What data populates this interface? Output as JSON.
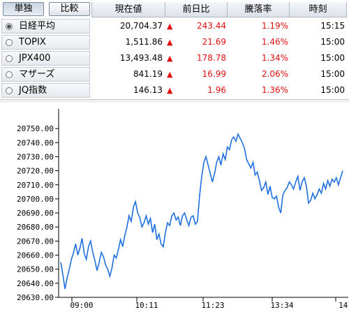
{
  "header": {
    "toggle_individual": "単独",
    "toggle_compare": "比較",
    "col_price": "現在値",
    "col_change": "前日比",
    "col_pct": "騰落率",
    "col_time": "時刻"
  },
  "rows": [
    {
      "name": "日経平均",
      "price": "20,704.37",
      "arrow": "▲",
      "change": "243.44",
      "pct": "1.19%",
      "time": "15:15",
      "selected": true
    },
    {
      "name": "TOPIX",
      "price": "1,511.86",
      "arrow": "▲",
      "change": "21.69",
      "pct": "1.46%",
      "time": "15:00",
      "selected": false
    },
    {
      "name": "JPX400",
      "price": "13,493.48",
      "arrow": "▲",
      "change": "178.78",
      "pct": "1.34%",
      "time": "15:00",
      "selected": false
    },
    {
      "name": "マザーズ",
      "price": "841.19",
      "arrow": "▲",
      "change": "16.99",
      "pct": "2.06%",
      "time": "15:00",
      "selected": false
    },
    {
      "name": "JQ指数",
      "price": "146.13",
      "arrow": "▲",
      "change": "1.96",
      "pct": "1.36%",
      "time": "15:00",
      "selected": false
    }
  ],
  "colors": {
    "up": "#e01010",
    "line": "#1f6fe0"
  },
  "chart_data": {
    "type": "line",
    "title": "",
    "xlabel": "",
    "ylabel": "",
    "ylim": [
      20630,
      20760
    ],
    "y_ticks": [
      "20630.00",
      "20640.00",
      "20650.00",
      "20660.00",
      "20670.00",
      "20680.00",
      "20690.00",
      "20700.00",
      "20710.00",
      "20720.00",
      "20730.00",
      "20740.00",
      "20750.00"
    ],
    "x_ticks": [
      "09:00",
      "10:11",
      "11:23",
      "13:34",
      "14:"
    ],
    "grid": false,
    "series": [
      {
        "values": [
          20655,
          20646,
          20636,
          20644,
          20650,
          20657,
          20662,
          20668,
          20660,
          20665,
          20672,
          20661,
          20657,
          20666,
          20670,
          20662,
          20656,
          20649,
          20655,
          20662,
          20659,
          20653,
          20650,
          20645,
          20651,
          20660,
          20658,
          20664,
          20671,
          20666,
          20674,
          20680,
          20688,
          20684,
          20694,
          20698,
          20690,
          20687,
          20680,
          20683,
          20688,
          20682,
          20686,
          20676,
          20682,
          20671,
          20675,
          20668,
          20666,
          20676,
          20683,
          20681,
          20688,
          20690,
          20685,
          20687,
          20681,
          20688,
          20690,
          20685,
          20681,
          20687,
          20688,
          20682,
          20684,
          20702,
          20716,
          20726,
          20730,
          20724,
          20718,
          20712,
          20718,
          20726,
          20730,
          20724,
          20732,
          20728,
          20737,
          20735,
          20742,
          20744,
          20741,
          20746,
          20743,
          20740,
          20736,
          20728,
          20725,
          20722,
          20726,
          20717,
          20719,
          20713,
          20706,
          20708,
          20712,
          20703,
          20709,
          20701,
          20700,
          20702,
          20694,
          20690,
          20703,
          20706,
          20708,
          20712,
          20710,
          20707,
          20712,
          20716,
          20706,
          20712,
          20715,
          20709,
          20697,
          20699,
          20704,
          20700,
          20703,
          20707,
          20704,
          20711,
          20707,
          20713,
          20709,
          20714,
          20712,
          20715,
          20710,
          20715,
          20720
        ]
      }
    ]
  }
}
